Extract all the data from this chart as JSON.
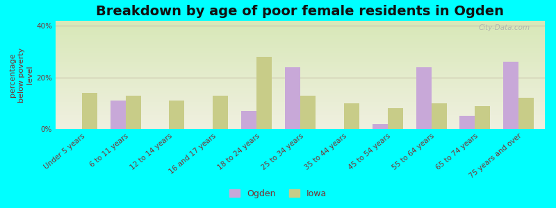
{
  "title": "Breakdown by age of poor female residents in Ogden",
  "categories": [
    "Under 5 years",
    "6 to 11 years",
    "12 to 14 years",
    "16 and 17 years",
    "18 to 24 years",
    "25 to 34 years",
    "35 to 44 years",
    "45 to 54 years",
    "55 to 64 years",
    "65 to 74 years",
    "75 years and over"
  ],
  "ogden_values": [
    0,
    11,
    0,
    0,
    7,
    24,
    0,
    2,
    24,
    5,
    26
  ],
  "iowa_values": [
    14,
    13,
    11,
    13,
    28,
    13,
    10,
    8,
    10,
    9,
    12
  ],
  "ogden_color": "#c8a8d8",
  "iowa_color": "#c8cc88",
  "background_top": "#d8e8b8",
  "background_bottom": "#f0f0e0",
  "bg_outer": "#00ffff",
  "ylabel": "percentage\nbelow poverty\nlevel",
  "ylim": [
    0,
    42
  ],
  "yticks": [
    0,
    20,
    40
  ],
  "ytick_labels": [
    "0%",
    "20%",
    "40%"
  ],
  "title_fontsize": 14,
  "axis_label_fontsize": 8,
  "tick_label_fontsize": 7.5,
  "bar_width": 0.35,
  "legend_labels": [
    "Ogden",
    "Iowa"
  ],
  "watermark": "City-Data.com",
  "text_color": "#7a3030",
  "grid_color": "#c8c0a8",
  "legend_marker_size": 10
}
